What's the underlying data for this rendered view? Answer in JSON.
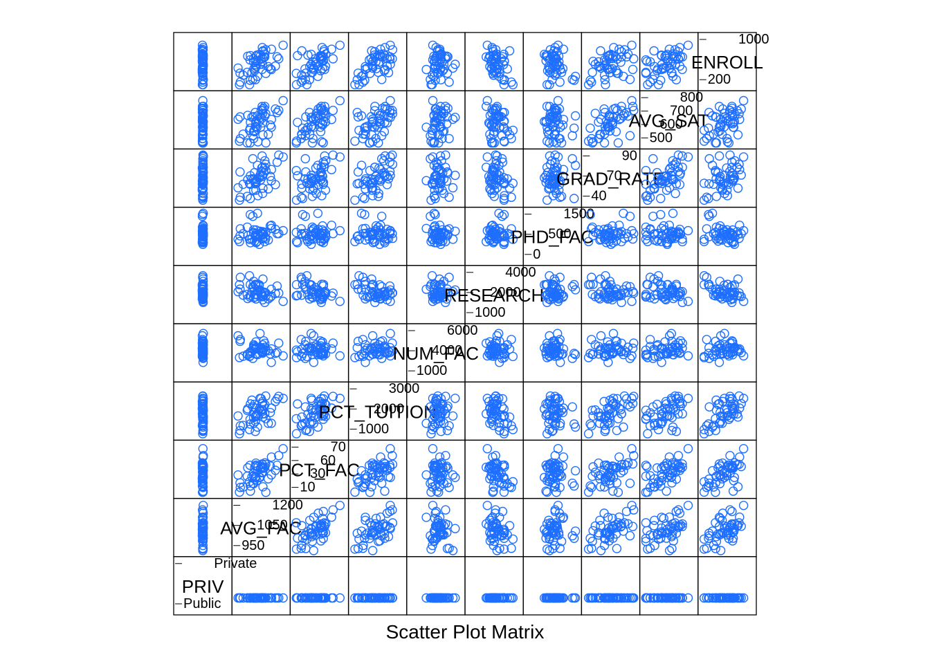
{
  "chart_data": {
    "type": "scatter",
    "subtype": "scatter-plot-matrix",
    "title": "",
    "xlabel": "Scatter Plot Matrix",
    "ylabel": "",
    "grid": false,
    "marker": "open-circle",
    "point_color": "#1E6FFF",
    "panel_border_color": "#000000",
    "variables": [
      {
        "label": "PRIV",
        "type": "factor",
        "levels": [
          "Public",
          "Private"
        ]
      },
      {
        "label": "AVG_FAC",
        "ticks": [
          950,
          1050,
          1200
        ],
        "range": [
          900,
          1250
        ]
      },
      {
        "label": "PCT_FAC",
        "ticks": [
          10,
          30,
          60,
          70
        ],
        "range": [
          5,
          75
        ]
      },
      {
        "label": "PCT_TUITION",
        "ticks": [
          1000,
          2000,
          3000
        ],
        "range": [
          500,
          3400
        ]
      },
      {
        "label": "NUM_FAC",
        "ticks": [
          1000,
          4000,
          6000
        ],
        "range": [
          500,
          6500
        ]
      },
      {
        "label": "RESEARCH",
        "ticks": [
          1000,
          2000,
          4000
        ],
        "range": [
          500,
          4500
        ]
      },
      {
        "label": "PHD_FAC",
        "ticks": [
          0,
          500,
          1500
        ],
        "range": [
          -100,
          1700
        ]
      },
      {
        "label": "GRAD_RATE",
        "ticks": [
          40,
          70,
          90
        ],
        "range": [
          30,
          95
        ]
      },
      {
        "label": "AVG_SAT",
        "ticks": [
          500,
          600,
          700,
          800
        ],
        "range": [
          480,
          860
        ]
      },
      {
        "label": "ENROLL",
        "ticks": [
          200,
          1000
        ],
        "range": [
          100,
          1100
        ]
      }
    ],
    "diagonal_labels": [
      "PRIV",
      "AVG_FAC",
      "PCT_FAC",
      "PCT_TUITION",
      "NUM_FAC",
      "RESEARCH",
      "PHD_FAC",
      "GRAD_RATE",
      "AVG_SAT",
      "ENROLL"
    ],
    "level_labels": [
      "Public",
      "Private"
    ],
    "tick_labels": [
      [
        "Public",
        "Private"
      ],
      [
        "950",
        "1050",
        "1200"
      ],
      [
        "10",
        "30",
        "60",
        "70"
      ],
      [
        "1000",
        "2000",
        "3000"
      ],
      [
        "1000",
        "4000",
        "6000"
      ],
      [
        "1000",
        "2000",
        "4000"
      ],
      [
        "0",
        "500",
        "1500"
      ],
      [
        "40",
        "70",
        "90"
      ],
      [
        "500",
        "600",
        "700",
        "800"
      ],
      [
        "200",
        "1000"
      ]
    ],
    "n_observations": 50
  }
}
